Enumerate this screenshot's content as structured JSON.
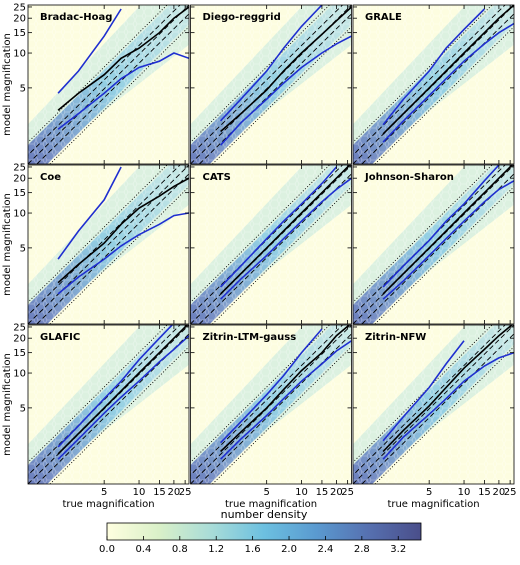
{
  "chart_data": [
    {
      "type": "line",
      "title": "Bradac-Hoag",
      "ylabel": "model magnification",
      "log": true,
      "xlim": [
        1.1,
        27
      ],
      "ylim": [
        1.1,
        26
      ],
      "xticks": [
        5,
        10,
        15,
        20,
        25
      ],
      "yticks": [
        5,
        10,
        15,
        20,
        25
      ],
      "xtick_labels": false,
      "ytick_labels": true,
      "x": [
        2,
        3,
        5,
        7,
        10,
        15,
        20,
        27
      ],
      "series": [
        {
          "color": "#000000",
          "values": [
            3.2,
            4.5,
            6.5,
            9,
            11,
            15,
            20,
            25
          ]
        },
        {
          "color": "#1f2fd0",
          "values": [
            4.5,
            7,
            14,
            24,
            null,
            null,
            null,
            null
          ]
        },
        {
          "color": "#1f2fd0",
          "values": [
            2.2,
            3,
            4.5,
            6,
            7.5,
            8.5,
            10,
            9
          ]
        }
      ]
    },
    {
      "type": "line",
      "title": "Diego-reggrid",
      "log": true,
      "xlim": [
        1.1,
        27
      ],
      "ylim": [
        1.1,
        26
      ],
      "xticks": [
        5,
        10,
        15,
        20,
        25
      ],
      "yticks": [
        5,
        10,
        15,
        20,
        25
      ],
      "xtick_labels": false,
      "ytick_labels": false,
      "x": [
        2,
        3,
        5,
        7,
        10,
        15,
        20,
        27
      ],
      "series": [
        {
          "color": "#000000",
          "values": [
            2.1,
            3,
            4.8,
            7,
            10,
            14.5,
            19,
            25
          ]
        },
        {
          "color": "#1f2fd0",
          "values": [
            2.6,
            4,
            7,
            11,
            17,
            26,
            null,
            null
          ]
        },
        {
          "color": "#1f2fd0",
          "values": [
            1.6,
            2.5,
            4,
            5.5,
            7.5,
            10,
            12,
            14
          ]
        }
      ]
    },
    {
      "type": "line",
      "title": "GRALE",
      "log": true,
      "xlim": [
        1.1,
        27
      ],
      "ylim": [
        1.1,
        26
      ],
      "xticks": [
        5,
        10,
        15,
        20,
        25
      ],
      "yticks": [
        5,
        10,
        15,
        20,
        25
      ],
      "xtick_labels": false,
      "ytick_labels": false,
      "x": [
        2,
        3,
        5,
        7,
        10,
        15,
        20,
        27
      ],
      "series": [
        {
          "color": "#000000",
          "values": [
            2,
            3,
            5,
            7,
            10,
            15,
            20,
            26
          ]
        },
        {
          "color": "#1f2fd0",
          "values": [
            2.4,
            4,
            7,
            11,
            16,
            24,
            null,
            null
          ]
        },
        {
          "color": "#1f2fd0",
          "values": [
            1.7,
            2.6,
            4.3,
            6,
            8.5,
            12,
            15,
            18
          ]
        }
      ]
    },
    {
      "type": "line",
      "title": "Coe",
      "ylabel": "model magnification",
      "log": true,
      "xlim": [
        1.1,
        27
      ],
      "ylim": [
        1.1,
        26
      ],
      "xticks": [
        5,
        10,
        15,
        20,
        25
      ],
      "yticks": [
        5,
        10,
        15,
        20,
        25
      ],
      "xtick_labels": false,
      "ytick_labels": true,
      "x": [
        2,
        3,
        5,
        7,
        10,
        15,
        20,
        27
      ],
      "series": [
        {
          "color": "#000000",
          "values": [
            2.5,
            3.6,
            5.5,
            8,
            11,
            14,
            17,
            20
          ]
        },
        {
          "color": "#1f2fd0",
          "values": [
            4,
            7,
            13,
            25,
            null,
            null,
            null,
            null
          ]
        },
        {
          "color": "#1f2fd0",
          "values": [
            2,
            2.8,
            4,
            5.2,
            6.5,
            8,
            9.5,
            10
          ]
        }
      ]
    },
    {
      "type": "line",
      "title": "CATS",
      "log": true,
      "xlim": [
        1.1,
        27
      ],
      "ylim": [
        1.1,
        26
      ],
      "xticks": [
        5,
        10,
        15,
        20,
        25
      ],
      "yticks": [
        5,
        10,
        15,
        20,
        25
      ],
      "xtick_labels": false,
      "ytick_labels": false,
      "x": [
        2,
        3,
        5,
        7,
        10,
        15,
        20,
        27
      ],
      "series": [
        {
          "color": "#000000",
          "values": [
            2,
            3,
            5,
            7,
            10,
            15,
            20,
            27
          ]
        },
        {
          "color": "#1f2fd0",
          "values": [
            2.3,
            3.5,
            6,
            8.5,
            12,
            18,
            25,
            null
          ]
        },
        {
          "color": "#1f2fd0",
          "values": [
            1.8,
            2.7,
            4.3,
            6,
            8.5,
            12.5,
            16,
            20
          ]
        }
      ]
    },
    {
      "type": "line",
      "title": "Johnson-Sharon",
      "log": true,
      "xlim": [
        1.1,
        27
      ],
      "ylim": [
        1.1,
        26
      ],
      "xticks": [
        5,
        10,
        15,
        20,
        25
      ],
      "yticks": [
        5,
        10,
        15,
        20,
        25
      ],
      "xtick_labels": false,
      "ytick_labels": false,
      "x": [
        2,
        3,
        5,
        7,
        10,
        15,
        20,
        27
      ],
      "series": [
        {
          "color": "#000000",
          "values": [
            2,
            3,
            5,
            7,
            10,
            15,
            20,
            27
          ]
        },
        {
          "color": "#1f2fd0",
          "values": [
            2.3,
            3.5,
            5.8,
            8.5,
            12,
            19,
            26,
            null
          ]
        },
        {
          "color": "#1f2fd0",
          "values": [
            1.8,
            2.6,
            4.3,
            6,
            8.5,
            12.5,
            16,
            19
          ]
        }
      ]
    },
    {
      "type": "line",
      "title": "GLAFIC",
      "ylabel": "model magnification",
      "xlabel": "true magnification",
      "log": true,
      "xlim": [
        1.1,
        27
      ],
      "ylim": [
        1.1,
        26
      ],
      "xticks": [
        5,
        10,
        15,
        20,
        25
      ],
      "yticks": [
        5,
        10,
        15,
        20,
        25
      ],
      "xtick_labels": true,
      "ytick_labels": true,
      "x": [
        2,
        3,
        5,
        7,
        10,
        15,
        20,
        27
      ],
      "series": [
        {
          "color": "#000000",
          "values": [
            2,
            3,
            5,
            7,
            10,
            15,
            20,
            27
          ]
        },
        {
          "color": "#1f2fd0",
          "values": [
            2.3,
            3.5,
            6,
            8.5,
            13,
            20,
            27,
            null
          ]
        },
        {
          "color": "#1f2fd0",
          "values": [
            1.8,
            2.7,
            4.5,
            6.2,
            8.5,
            12.5,
            16,
            21
          ]
        }
      ]
    },
    {
      "type": "line",
      "title": "Zitrin-LTM-gauss",
      "xlabel": "true magnification",
      "log": true,
      "xlim": [
        1.1,
        27
      ],
      "ylim": [
        1.1,
        26
      ],
      "xticks": [
        5,
        10,
        15,
        20,
        25
      ],
      "yticks": [
        5,
        10,
        15,
        20,
        25
      ],
      "xtick_labels": true,
      "ytick_labels": false,
      "x": [
        2,
        3,
        5,
        7,
        10,
        15,
        20,
        27
      ],
      "series": [
        {
          "color": "#000000",
          "values": [
            2.1,
            3.1,
            5,
            7.2,
            10.5,
            15,
            21,
            27
          ]
        },
        {
          "color": "#1f2fd0",
          "values": [
            2.5,
            3.8,
            6.5,
            9.5,
            15,
            24,
            null,
            null
          ]
        },
        {
          "color": "#1f2fd0",
          "values": [
            1.8,
            2.7,
            4.3,
            6,
            8.5,
            12,
            15.5,
            19
          ]
        }
      ]
    },
    {
      "type": "line",
      "title": "Zitrin-NFW",
      "xlabel": "true magnification",
      "log": true,
      "xlim": [
        1.1,
        27
      ],
      "ylim": [
        1.1,
        26
      ],
      "xticks": [
        5,
        10,
        15,
        20,
        25
      ],
      "yticks": [
        5,
        10,
        15,
        20,
        25
      ],
      "xtick_labels": true,
      "ytick_labels": false,
      "x": [
        2,
        3,
        5,
        7,
        10,
        15,
        20,
        27
      ],
      "series": [
        {
          "color": "#000000",
          "values": [
            2.1,
            3.2,
            5.2,
            7.5,
            11,
            16,
            21,
            27
          ]
        },
        {
          "color": "#1f2fd0",
          "values": [
            2.6,
            4.2,
            7.5,
            12,
            19,
            null,
            null,
            null
          ]
        },
        {
          "color": "#1f2fd0",
          "values": [
            1.8,
            2.8,
            4.4,
            6,
            8.5,
            11.5,
            13.5,
            15
          ]
        }
      ]
    },
    {
      "type": "colorbar",
      "title": "number density",
      "lim": [
        0,
        3.45
      ],
      "colors": [
        "#ffffe0",
        "#d9f0c8",
        "#a8dcd8",
        "#6cc0e0",
        "#5a9ad0",
        "#5670b0",
        "#4a4e8a"
      ],
      "ticks": [
        {
          "value": 0,
          "label": "0.0"
        },
        0.4,
        0.8,
        1.2,
        1.6,
        {
          "value": 2,
          "label": "2.0"
        },
        2.4,
        2.8,
        3.2
      ]
    }
  ]
}
